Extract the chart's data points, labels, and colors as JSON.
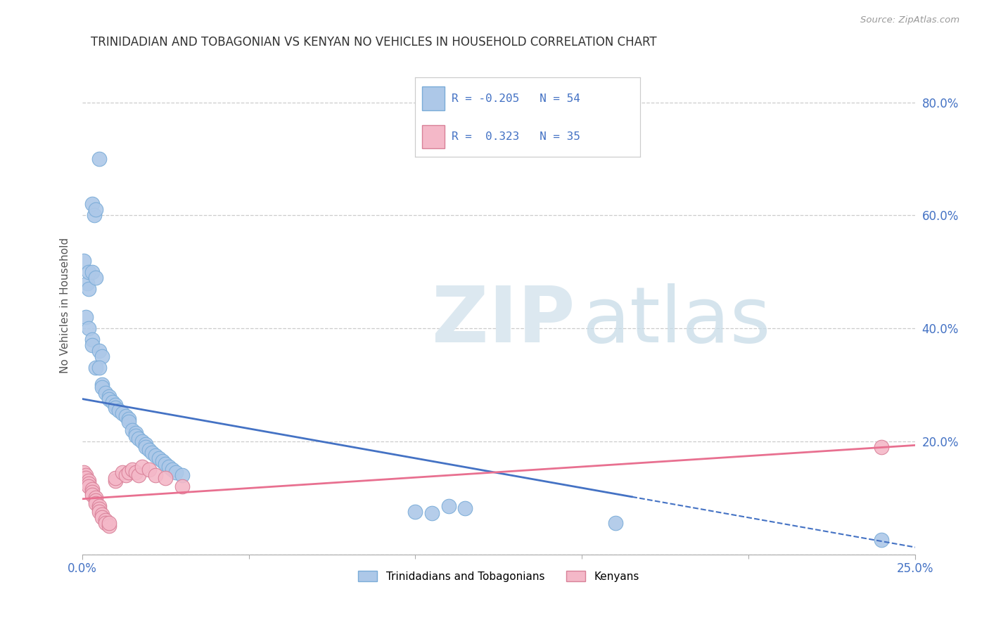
{
  "title": "TRINIDADIAN AND TOBAGONIAN VS KENYAN NO VEHICLES IN HOUSEHOLD CORRELATION CHART",
  "source": "Source: ZipAtlas.com",
  "ylabel_label": "No Vehicles in Household",
  "legend_label1": "Trinidadians and Tobagonians",
  "legend_label2": "Kenyans",
  "R1": "-0.205",
  "N1": "54",
  "R2": "0.323",
  "N2": "35",
  "blue_color": "#adc8e8",
  "pink_color": "#f4b8c8",
  "blue_line_color": "#4472c4",
  "pink_line_color": "#e87090",
  "xlim": [
    0.0,
    0.25
  ],
  "ylim": [
    0.0,
    0.88
  ],
  "yticks": [
    0.0,
    0.2,
    0.4,
    0.6,
    0.8
  ],
  "blue_scatter": [
    [
      0.0005,
      0.52
    ],
    [
      0.0015,
      0.48
    ],
    [
      0.002,
      0.47
    ],
    [
      0.003,
      0.62
    ],
    [
      0.0035,
      0.6
    ],
    [
      0.004,
      0.61
    ],
    [
      0.005,
      0.7
    ],
    [
      0.002,
      0.5
    ],
    [
      0.003,
      0.5
    ],
    [
      0.004,
      0.49
    ],
    [
      0.001,
      0.42
    ],
    [
      0.002,
      0.4
    ],
    [
      0.003,
      0.38
    ],
    [
      0.003,
      0.37
    ],
    [
      0.005,
      0.36
    ],
    [
      0.006,
      0.35
    ],
    [
      0.004,
      0.33
    ],
    [
      0.005,
      0.33
    ],
    [
      0.006,
      0.3
    ],
    [
      0.006,
      0.295
    ],
    [
      0.007,
      0.285
    ],
    [
      0.008,
      0.28
    ],
    [
      0.008,
      0.275
    ],
    [
      0.009,
      0.27
    ],
    [
      0.01,
      0.265
    ],
    [
      0.01,
      0.26
    ],
    [
      0.011,
      0.255
    ],
    [
      0.012,
      0.25
    ],
    [
      0.013,
      0.245
    ],
    [
      0.014,
      0.24
    ],
    [
      0.014,
      0.235
    ],
    [
      0.015,
      0.22
    ],
    [
      0.016,
      0.215
    ],
    [
      0.016,
      0.21
    ],
    [
      0.017,
      0.205
    ],
    [
      0.018,
      0.2
    ],
    [
      0.019,
      0.195
    ],
    [
      0.019,
      0.19
    ],
    [
      0.02,
      0.185
    ],
    [
      0.021,
      0.18
    ],
    [
      0.022,
      0.175
    ],
    [
      0.023,
      0.17
    ],
    [
      0.024,
      0.165
    ],
    [
      0.025,
      0.16
    ],
    [
      0.026,
      0.155
    ],
    [
      0.027,
      0.15
    ],
    [
      0.028,
      0.145
    ],
    [
      0.03,
      0.14
    ],
    [
      0.11,
      0.085
    ],
    [
      0.115,
      0.082
    ],
    [
      0.1,
      0.075
    ],
    [
      0.105,
      0.073
    ],
    [
      0.16,
      0.055
    ],
    [
      0.24,
      0.025
    ]
  ],
  "pink_scatter": [
    [
      0.0005,
      0.145
    ],
    [
      0.001,
      0.14
    ],
    [
      0.001,
      0.135
    ],
    [
      0.002,
      0.13
    ],
    [
      0.002,
      0.125
    ],
    [
      0.002,
      0.12
    ],
    [
      0.003,
      0.115
    ],
    [
      0.003,
      0.11
    ],
    [
      0.003,
      0.105
    ],
    [
      0.004,
      0.1
    ],
    [
      0.004,
      0.095
    ],
    [
      0.004,
      0.09
    ],
    [
      0.005,
      0.085
    ],
    [
      0.005,
      0.08
    ],
    [
      0.005,
      0.075
    ],
    [
      0.006,
      0.07
    ],
    [
      0.006,
      0.065
    ],
    [
      0.007,
      0.06
    ],
    [
      0.007,
      0.055
    ],
    [
      0.008,
      0.05
    ],
    [
      0.008,
      0.055
    ],
    [
      0.01,
      0.13
    ],
    [
      0.01,
      0.135
    ],
    [
      0.012,
      0.145
    ],
    [
      0.013,
      0.14
    ],
    [
      0.014,
      0.145
    ],
    [
      0.015,
      0.15
    ],
    [
      0.016,
      0.145
    ],
    [
      0.017,
      0.14
    ],
    [
      0.018,
      0.155
    ],
    [
      0.02,
      0.15
    ],
    [
      0.022,
      0.14
    ],
    [
      0.025,
      0.135
    ],
    [
      0.03,
      0.12
    ],
    [
      0.24,
      0.19
    ]
  ]
}
